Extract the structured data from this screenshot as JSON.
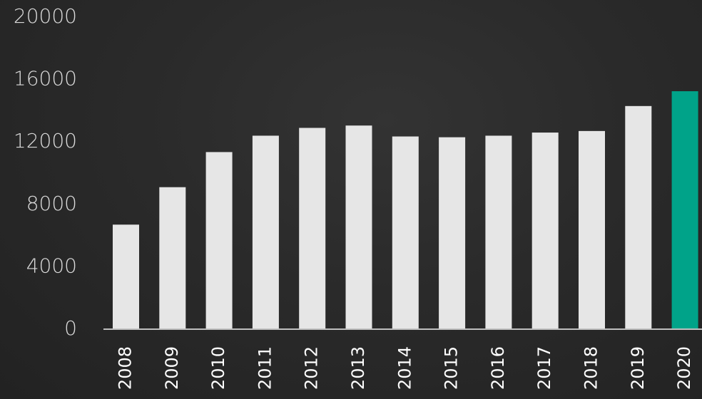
{
  "chart_data": {
    "type": "bar",
    "title": "",
    "xlabel": "",
    "ylabel": "",
    "categories": [
      "2008",
      "2009",
      "2010",
      "2011",
      "2012",
      "2013",
      "2014",
      "2015",
      "2016",
      "2017",
      "2018",
      "2019",
      "2020"
    ],
    "values": [
      6700,
      9100,
      11350,
      12400,
      12900,
      13050,
      12350,
      12300,
      12400,
      12600,
      12700,
      14300,
      15250
    ],
    "ylim": [
      0,
      20000
    ],
    "yticks": [
      0,
      4000,
      8000,
      12000,
      16000,
      20000
    ],
    "grid": false,
    "legend": "none",
    "colors": {
      "bar": "#e6e6e6",
      "highlight_bar": "#00a389",
      "axis": "#bfbfbf",
      "tick_text": "#d9d9d9",
      "background": "#262626"
    },
    "highlight_category": "2020"
  }
}
